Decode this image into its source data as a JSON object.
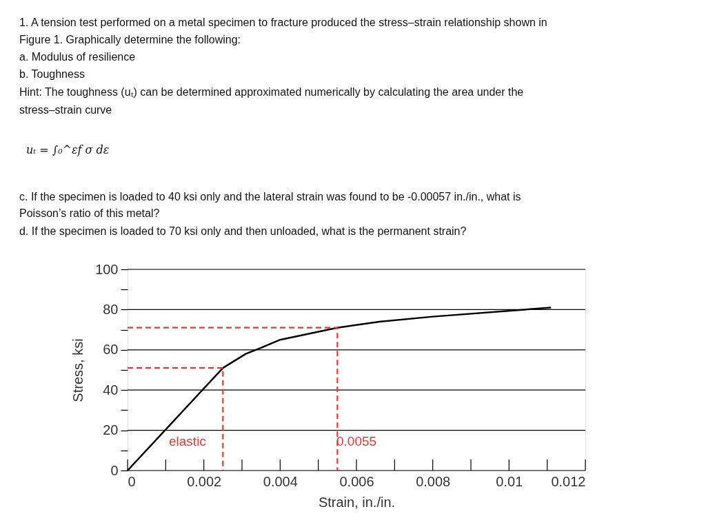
{
  "chart_data": {
    "type": "line",
    "xlabel": "Strain, in./in.",
    "ylabel": "Stress, ksi",
    "x": [
      0,
      0.0025,
      0.0031,
      0.0035,
      0.004,
      0.0055,
      0.0066,
      0.008,
      0.0111
    ],
    "series": [
      {
        "color": "#000000",
        "values": [
          0,
          51,
          58,
          61,
          65,
          71,
          74,
          76.5,
          81
        ]
      },
      {
        "type": "line",
        "color": "#e53935",
        "line_style": "dashed",
        "x": [
          0,
          0.0025,
          0.0025
        ],
        "values": [
          51,
          51,
          0
        ]
      },
      {
        "type": "line",
        "color": "#e53935",
        "line_style": "dashed",
        "x": [
          0,
          0.0055,
          0.0055
        ],
        "values": [
          71,
          71,
          0
        ]
      }
    ],
    "xlim": [
      0,
      0.012
    ],
    "ylim": [
      0,
      100
    ],
    "xticks": [
      0,
      {
        "value": 0.001,
        "label": null
      },
      0.002,
      {
        "value": 0.003,
        "label": null
      },
      0.004,
      {
        "value": 0.005,
        "label": null
      },
      0.006,
      {
        "value": 0.007,
        "label": null
      },
      0.008,
      {
        "value": 0.009,
        "label": null
      },
      0.01,
      {
        "value": 0.011,
        "label": null
      },
      0.012
    ],
    "yticks": [
      0,
      {
        "value": 10,
        "label": null
      },
      20,
      {
        "value": 30,
        "label": null
      },
      40,
      {
        "value": 50,
        "label": null
      },
      60,
      {
        "value": 70,
        "label": null
      },
      80,
      {
        "value": 90,
        "label": null
      },
      100
    ],
    "grid": "y",
    "annotations": [
      "1. A tension test performed on a metal specimen to fracture produced the stress–strain relationship shown in",
      "Figure 1. Graphically determine the following:",
      "a. Modulus of resilience",
      "b. Toughness",
      "Hint: The toughness (uₜ) can be determined approximated numerically by calculating the area under the",
      "stress–strain curve",
      "uₜ = ∫₀^εf σ dε",
      "c. If the specimen is loaded to 40 ksi only and the lateral strain was found to be -0.00057 in./in., what is",
      "Poisson’s ratio of this metal?",
      "d. If the specimen is loaded to 70 ksi only and then unloaded, what is the permanent strain?",
      "elastic",
      "0.0055"
    ]
  }
}
